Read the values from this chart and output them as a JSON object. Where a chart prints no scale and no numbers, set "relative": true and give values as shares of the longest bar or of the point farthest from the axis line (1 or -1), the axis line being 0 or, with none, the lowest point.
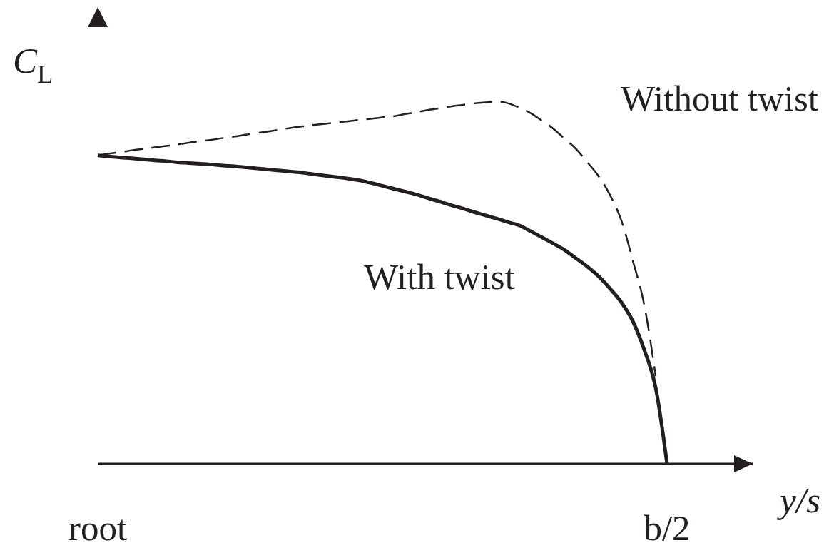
{
  "chart_data": {
    "type": "line",
    "relative": true,
    "xlabel": "y/s",
    "ylabel": "C$_{L}$",
    "legend": false,
    "grid": false,
    "marker": "none",
    "categories": [
      "root",
      null,
      null,
      null,
      null,
      null,
      null,
      null,
      null,
      null,
      null,
      null,
      null,
      null,
      null,
      null,
      null,
      null,
      null,
      null,
      null,
      null,
      null,
      null,
      null,
      null,
      null,
      null,
      null,
      null,
      null,
      null,
      null,
      null,
      null,
      null,
      null,
      null,
      null,
      null,
      null,
      null,
      null,
      null,
      null,
      null,
      null,
      null,
      null,
      null,
      "b/2"
    ],
    "series": [
      {
        "name": "Without twist",
        "color": "#231f20",
        "line_style": "dashed",
        "values": [
          0.851,
          0.856,
          0.86,
          0.865,
          0.869,
          0.873,
          0.877,
          0.881,
          0.886,
          0.89,
          0.894,
          0.899,
          0.903,
          0.908,
          0.913,
          0.917,
          0.922,
          0.927,
          0.931,
          0.935,
          0.938,
          0.942,
          0.945,
          0.949,
          0.952,
          0.956,
          0.959,
          0.965,
          0.97,
          0.976,
          0.981,
          0.986,
          0.99,
          0.994,
          0.997,
          1,
          0.995,
          0.983,
          0.968,
          0.947,
          0.925,
          0.897,
          0.869,
          0.832,
          0.793,
          0.741,
          0.67,
          0.56,
          0.438,
          0.242,
          null
        ]
      },
      {
        "name": "With twist",
        "color": "#231f20",
        "line_style": "solid",
        "values": [
          0.851,
          0.848,
          0.845,
          0.843,
          0.84,
          0.837,
          0.835,
          0.832,
          0.83,
          0.828,
          0.826,
          0.823,
          0.821,
          0.818,
          0.815,
          0.812,
          0.809,
          0.806,
          0.803,
          0.799,
          0.795,
          0.791,
          0.787,
          0.782,
          0.775,
          0.767,
          0.759,
          0.751,
          0.743,
          0.733,
          0.724,
          0.714,
          0.705,
          0.695,
          0.686,
          0.677,
          0.667,
          0.658,
          0.642,
          0.625,
          0.608,
          0.59,
          0.567,
          0.544,
          0.517,
          0.483,
          0.445,
          0.393,
          0.314,
          0.21,
          0
        ]
      }
    ]
  }
}
